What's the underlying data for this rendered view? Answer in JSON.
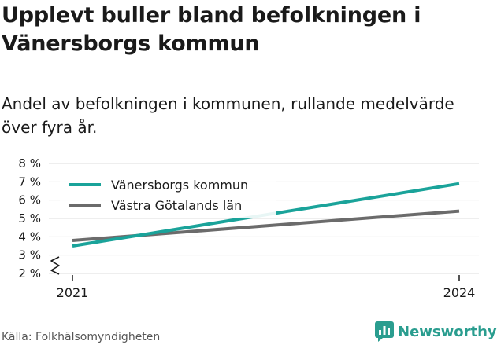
{
  "title": "Upplevt buller bland befolkningen i Vänersborgs kommun",
  "subtitle": "Andel av befolkningen i kommunen, rullande medelvärde över fyra år.",
  "source": "Källa: Folkhälsomyndigheten",
  "brand": {
    "name": "Newsworthy",
    "icon": "newsworthy-logo-icon",
    "color": "#2a9d8f"
  },
  "chart_data": {
    "type": "line",
    "title": "Upplevt buller bland befolkningen i Vänersborgs kommun",
    "subtitle": "Andel av befolkningen i kommunen, rullande medelvärde över fyra år.",
    "x": [
      2021,
      2024
    ],
    "x_tick_labels": [
      "2021",
      "2024"
    ],
    "y_ticks": [
      2,
      3,
      4,
      5,
      6,
      7,
      8
    ],
    "y_tick_labels": [
      "2 %",
      "3 %",
      "4 %",
      "5 %",
      "6 %",
      "7 %",
      "8 %"
    ],
    "ylim": [
      2,
      8
    ],
    "y_axis_break": true,
    "grid": true,
    "legend_position": "top-left",
    "series": [
      {
        "name": "Vänersborgs kommun",
        "values": [
          3.5,
          6.9
        ],
        "color": "#1aa39a"
      },
      {
        "name": "Västra Götalands län",
        "values": [
          3.8,
          5.4
        ],
        "color": "#6b6b6b"
      }
    ]
  }
}
